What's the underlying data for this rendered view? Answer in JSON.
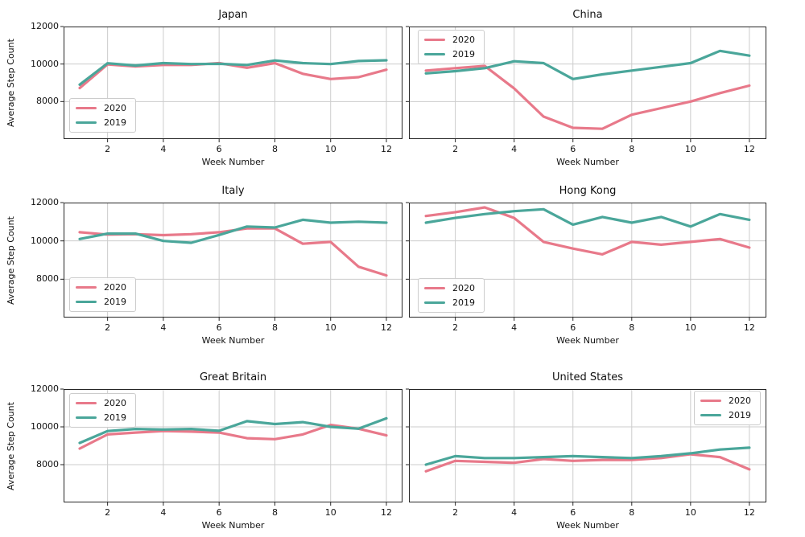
{
  "figure": {
    "ylabel": "Average Step Count",
    "xlabel": "Week Number",
    "ytick_labels": [
      "12000",
      "10000",
      "8000"
    ],
    "xtick_labels": [
      "2",
      "4",
      "6",
      "8",
      "10",
      "12"
    ]
  },
  "colors": {
    "line_2020": "#e8798a",
    "line_2019": "#4aa69a",
    "grid": "#cccccc",
    "spine": "#262626",
    "text": "#111111"
  },
  "chart_data": [
    {
      "type": "line",
      "title": "Japan",
      "x": [
        1,
        2,
        3,
        4,
        5,
        6,
        7,
        8,
        9,
        10,
        11,
        12
      ],
      "xlabel": "Week Number",
      "ylabel": "Average Step Count",
      "ylim": [
        6000,
        12000
      ],
      "yticks": [
        8000,
        10000,
        12000
      ],
      "xticks": [
        2,
        4,
        6,
        8,
        10,
        12
      ],
      "grid": true,
      "legend_position": "lower left",
      "series": [
        {
          "name": "2020",
          "values": [
            8720,
            9980,
            9870,
            9950,
            9950,
            10050,
            9800,
            10050,
            9480,
            9200,
            9300,
            9700
          ]
        },
        {
          "name": "2019",
          "values": [
            8900,
            10040,
            9920,
            10050,
            10000,
            10010,
            9950,
            10190,
            10050,
            10000,
            10160,
            10200
          ]
        }
      ]
    },
    {
      "type": "line",
      "title": "China",
      "x": [
        1,
        2,
        3,
        4,
        5,
        6,
        7,
        8,
        9,
        10,
        11,
        12
      ],
      "xlabel": "Week Number",
      "ylim": [
        6000,
        12000
      ],
      "yticks": [
        8000,
        10000,
        12000
      ],
      "xticks": [
        2,
        4,
        6,
        8,
        10,
        12
      ],
      "grid": true,
      "legend_position": "upper left",
      "series": [
        {
          "name": "2020",
          "values": [
            9650,
            9780,
            9900,
            8700,
            7200,
            6600,
            6550,
            7300,
            7650,
            8000,
            8450,
            8850
          ]
        },
        {
          "name": "2019",
          "values": [
            9500,
            9620,
            9780,
            10150,
            10050,
            9200,
            9450,
            9650,
            9850,
            10050,
            10700,
            10450
          ]
        }
      ]
    },
    {
      "type": "line",
      "title": "Italy",
      "x": [
        1,
        2,
        3,
        4,
        5,
        6,
        7,
        8,
        9,
        10,
        11,
        12
      ],
      "xlabel": "Week Number",
      "ylabel": "Average Step Count",
      "ylim": [
        6000,
        12000
      ],
      "yticks": [
        8000,
        10000,
        12000
      ],
      "xticks": [
        2,
        4,
        6,
        8,
        10,
        12
      ],
      "grid": true,
      "legend_position": "lower left",
      "series": [
        {
          "name": "2020",
          "values": [
            10450,
            10330,
            10350,
            10300,
            10350,
            10450,
            10650,
            10650,
            9850,
            9950,
            8650,
            8200
          ]
        },
        {
          "name": "2019",
          "values": [
            10100,
            10380,
            10380,
            10000,
            9900,
            10310,
            10750,
            10700,
            11100,
            10950,
            11000,
            10950
          ]
        }
      ]
    },
    {
      "type": "line",
      "title": "Hong Kong",
      "x": [
        1,
        2,
        3,
        4,
        5,
        6,
        7,
        8,
        9,
        10,
        11,
        12
      ],
      "xlabel": "Week Number",
      "ylim": [
        6000,
        12000
      ],
      "yticks": [
        8000,
        10000,
        12000
      ],
      "xticks": [
        2,
        4,
        6,
        8,
        10,
        12
      ],
      "grid": true,
      "legend_position": "lower left",
      "series": [
        {
          "name": "2020",
          "values": [
            11300,
            11500,
            11750,
            11200,
            9950,
            9600,
            9300,
            9950,
            9800,
            9950,
            10100,
            9650
          ]
        },
        {
          "name": "2019",
          "values": [
            10950,
            11200,
            11400,
            11550,
            11650,
            10850,
            11250,
            10950,
            11250,
            10750,
            11400,
            11100
          ]
        }
      ]
    },
    {
      "type": "line",
      "title": "Great Britain",
      "x": [
        1,
        2,
        3,
        4,
        5,
        6,
        7,
        8,
        9,
        10,
        11,
        12
      ],
      "xlabel": "Week Number",
      "ylabel": "Average Step Count",
      "ylim": [
        6000,
        12000
      ],
      "yticks": [
        8000,
        10000,
        12000
      ],
      "xticks": [
        2,
        4,
        6,
        8,
        10,
        12
      ],
      "grid": true,
      "legend_position": "upper left",
      "series": [
        {
          "name": "2020",
          "values": [
            8850,
            9600,
            9700,
            9780,
            9750,
            9700,
            9400,
            9350,
            9600,
            10100,
            9900,
            9550
          ]
        },
        {
          "name": "2019",
          "values": [
            9150,
            9780,
            9890,
            9860,
            9890,
            9790,
            10300,
            10150,
            10250,
            10000,
            9900,
            10450
          ]
        }
      ]
    },
    {
      "type": "line",
      "title": "United States",
      "x": [
        1,
        2,
        3,
        4,
        5,
        6,
        7,
        8,
        9,
        10,
        11,
        12
      ],
      "xlabel": "Week Number",
      "ylim": [
        6000,
        12000
      ],
      "yticks": [
        8000,
        10000,
        12000
      ],
      "xticks": [
        2,
        4,
        6,
        8,
        10,
        12
      ],
      "grid": true,
      "legend_position": "upper right",
      "series": [
        {
          "name": "2020",
          "values": [
            7650,
            8200,
            8150,
            8100,
            8300,
            8200,
            8250,
            8250,
            8350,
            8550,
            8400,
            7750
          ]
        },
        {
          "name": "2019",
          "values": [
            8000,
            8450,
            8350,
            8350,
            8400,
            8450,
            8400,
            8350,
            8450,
            8600,
            8800,
            8900
          ]
        }
      ]
    }
  ]
}
